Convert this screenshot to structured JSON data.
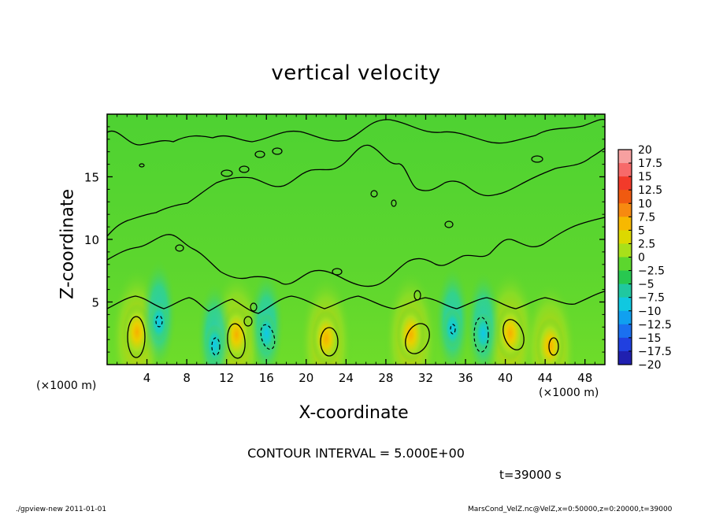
{
  "chart_data": {
    "type": "heatmap",
    "title": "vertical velocity",
    "xlabel": "X-coordinate",
    "ylabel": "Z-coordinate",
    "x_unit": "(×1000 m)",
    "xlim": [
      0,
      50
    ],
    "ylim": [
      0,
      20
    ],
    "x_ticks": [
      4,
      8,
      12,
      16,
      20,
      24,
      28,
      32,
      36,
      40,
      44,
      48
    ],
    "y_ticks": [
      5,
      10,
      15
    ],
    "colorbar": {
      "levels": [
        "20",
        "17.5",
        "15",
        "12.5",
        "10",
        "7.5",
        "5",
        "2.5",
        "0",
        "−2.5",
        "−5",
        "−7.5",
        "−10",
        "−12.5",
        "−15",
        "−17.5",
        "−20"
      ],
      "colors": [
        "#f7a0a0",
        "#f76a6a",
        "#f23a2a",
        "#f05a10",
        "#f78a10",
        "#f7b800",
        "#dcd800",
        "#a8e01a",
        "#5cd62e",
        "#28c850",
        "#20c8a0",
        "#10c8e0",
        "#10a0f0",
        "#1a70f0",
        "#2040e0",
        "#2020b0",
        "#5a1aa8"
      ]
    },
    "contour_interval": "CONTOUR INTERVAL = 5.000E+00",
    "time_label": "t=39000 s",
    "updraft_cores": [
      {
        "x": 3.0,
        "z": 2.6,
        "w": 7.5
      },
      {
        "x": 13.0,
        "z": 2.4,
        "w": 6.5
      },
      {
        "x": 22.0,
        "z": 2.1,
        "w": 5.5
      },
      {
        "x": 30.5,
        "z": 2.4,
        "w": 5.5
      },
      {
        "x": 40.5,
        "z": 2.5,
        "w": 5.5
      },
      {
        "x": 44.5,
        "z": 1.5,
        "w": 5.0
      }
    ],
    "downdraft_cores": [
      {
        "x": 5.2,
        "z": 3.4,
        "w": -5
      },
      {
        "x": 10.8,
        "z": 1.6,
        "w": -5
      },
      {
        "x": 16.0,
        "z": 2.5,
        "w": -6
      },
      {
        "x": 34.7,
        "z": 2.9,
        "w": -5
      },
      {
        "x": 37.8,
        "z": 2.5,
        "w": -6.5
      }
    ]
  },
  "footer": {
    "left": "./gpview-new  2011-01-01",
    "right": "MarsCond_VelZ.nc@VelZ,x=0:50000,z=0:20000,t=39000"
  }
}
